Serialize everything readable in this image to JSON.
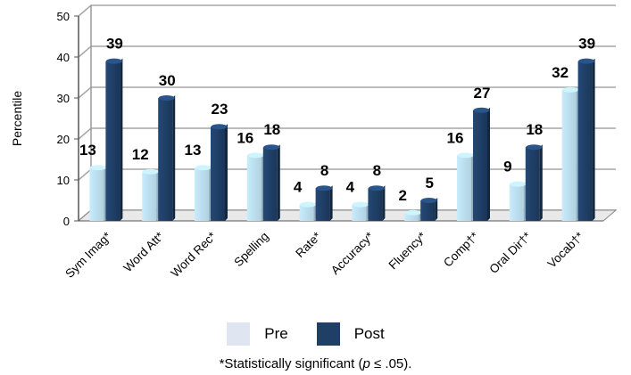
{
  "chart_data": {
    "type": "bar",
    "categories": [
      "Sym Imag*",
      "Word Att*",
      "Word Rec*",
      "Spelling",
      "Rate*",
      "Accuracy*",
      "Fluency*",
      "Comp†*",
      "Oral Dir†*",
      "Vocab†*"
    ],
    "series": [
      {
        "name": "Pre",
        "values": [
          13,
          12,
          13,
          16,
          4,
          4,
          2,
          16,
          9,
          32
        ],
        "color": "#bfe3f3"
      },
      {
        "name": "Post",
        "values": [
          39,
          30,
          23,
          18,
          8,
          8,
          5,
          27,
          18,
          39
        ],
        "color": "#1f3f66"
      }
    ],
    "ylabel": "Percentile",
    "ylim": [
      0,
      50
    ],
    "yticks": [
      0,
      10,
      20,
      30,
      40,
      50
    ],
    "grid": true,
    "legend_position": "bottom"
  },
  "legend": {
    "pre_label": "Pre",
    "post_label": "Post",
    "pre_color": "#dfe6f1",
    "post_color": "#1f3f66"
  },
  "footnote": {
    "prefix": "*Statistically significant (",
    "p": "p",
    "suffix": " ≤ .05)."
  }
}
